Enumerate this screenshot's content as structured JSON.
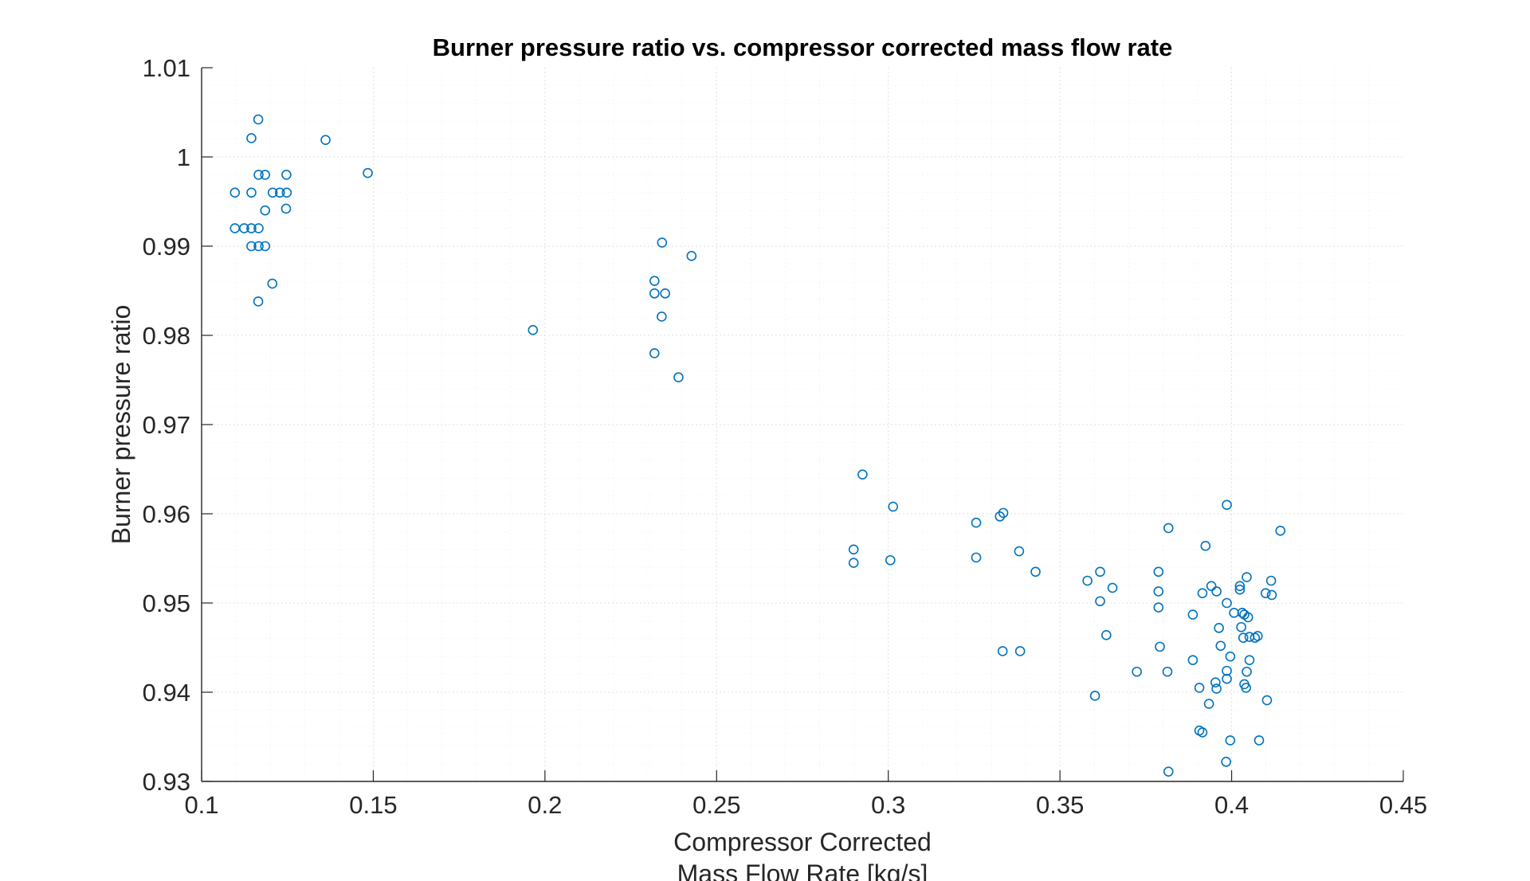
{
  "chart_data": {
    "type": "scatter",
    "title": "Burner pressure ratio vs. compressor corrected mass flow rate",
    "xlabel": [
      "Compressor Corrected",
      "Mass Flow Rate [kg/s]"
    ],
    "ylabel": "Burner pressure ratio",
    "xlim": [
      0.1,
      0.45
    ],
    "ylim": [
      0.93,
      1.01
    ],
    "xticks": [
      "0.1",
      "0.15",
      "0.2",
      "0.25",
      "0.3",
      "0.35",
      "0.4",
      "0.45"
    ],
    "yticks": [
      "0.93",
      "0.94",
      "0.95",
      "0.96",
      "0.97",
      "0.98",
      "0.99",
      "1",
      "1.01"
    ],
    "grid": true,
    "minor_grid": true,
    "marker": "circle-open",
    "color": "#0072BD",
    "series": [
      {
        "points": [
          [
            0.1165,
            1.0042
          ],
          [
            0.1145,
            1.0021
          ],
          [
            0.1361,
            1.0019
          ],
          [
            0.1484,
            0.9982
          ],
          [
            0.1166,
            0.998
          ],
          [
            0.1185,
            0.998
          ],
          [
            0.1247,
            0.998
          ],
          [
            0.1097,
            0.996
          ],
          [
            0.1145,
            0.996
          ],
          [
            0.1207,
            0.996
          ],
          [
            0.1228,
            0.996
          ],
          [
            0.1248,
            0.996
          ],
          [
            0.1185,
            0.994
          ],
          [
            0.1246,
            0.9942
          ],
          [
            0.1097,
            0.992
          ],
          [
            0.1124,
            0.992
          ],
          [
            0.1145,
            0.992
          ],
          [
            0.1166,
            0.992
          ],
          [
            0.1145,
            0.99
          ],
          [
            0.1166,
            0.99
          ],
          [
            0.1185,
            0.99
          ],
          [
            0.1206,
            0.9858
          ],
          [
            0.1165,
            0.9838
          ],
          [
            0.2341,
            0.9904
          ],
          [
            0.2427,
            0.9889
          ],
          [
            0.2319,
            0.9861
          ],
          [
            0.2319,
            0.9847
          ],
          [
            0.235,
            0.9847
          ],
          [
            0.234,
            0.9821
          ],
          [
            0.1965,
            0.9806
          ],
          [
            0.2319,
            0.978
          ],
          [
            0.2389,
            0.9753
          ],
          [
            0.2925,
            0.9644
          ],
          [
            0.3014,
            0.9608
          ],
          [
            0.3256,
            0.959
          ],
          [
            0.3325,
            0.9597
          ],
          [
            0.3335,
            0.9601
          ],
          [
            0.2899,
            0.956
          ],
          [
            0.2899,
            0.9545
          ],
          [
            0.3006,
            0.9548
          ],
          [
            0.3256,
            0.9551
          ],
          [
            0.3381,
            0.9558
          ],
          [
            0.3429,
            0.9535
          ],
          [
            0.3333,
            0.9446
          ],
          [
            0.3384,
            0.9446
          ],
          [
            0.358,
            0.9525
          ],
          [
            0.3617,
            0.9535
          ],
          [
            0.3653,
            0.9517
          ],
          [
            0.3617,
            0.9502
          ],
          [
            0.3635,
            0.9464
          ],
          [
            0.3602,
            0.9396
          ],
          [
            0.3724,
            0.9423
          ],
          [
            0.3787,
            0.9535
          ],
          [
            0.3787,
            0.9513
          ],
          [
            0.3787,
            0.9495
          ],
          [
            0.3791,
            0.9451
          ],
          [
            0.3816,
            0.9584
          ],
          [
            0.3813,
            0.9423
          ],
          [
            0.3816,
            0.9311
          ],
          [
            0.3887,
            0.9487
          ],
          [
            0.3887,
            0.9436
          ],
          [
            0.3906,
            0.9405
          ],
          [
            0.3906,
            0.9357
          ],
          [
            0.3915,
            0.9511
          ],
          [
            0.3915,
            0.9355
          ],
          [
            0.3924,
            0.9564
          ],
          [
            0.3941,
            0.9519
          ],
          [
            0.3934,
            0.9387
          ],
          [
            0.3956,
            0.9513
          ],
          [
            0.3953,
            0.9411
          ],
          [
            0.3956,
            0.9404
          ],
          [
            0.3963,
            0.9472
          ],
          [
            0.3968,
            0.9452
          ],
          [
            0.3986,
            0.961
          ],
          [
            0.3986,
            0.95
          ],
          [
            0.3986,
            0.9424
          ],
          [
            0.3986,
            0.9415
          ],
          [
            0.3996,
            0.944
          ],
          [
            0.3996,
            0.9346
          ],
          [
            0.3984,
            0.9322
          ],
          [
            0.4007,
            0.9489
          ],
          [
            0.4024,
            0.9519
          ],
          [
            0.4024,
            0.9515
          ],
          [
            0.4028,
            0.9473
          ],
          [
            0.4031,
            0.9489
          ],
          [
            0.4034,
            0.9461
          ],
          [
            0.4037,
            0.9487
          ],
          [
            0.4037,
            0.9409
          ],
          [
            0.4042,
            0.9405
          ],
          [
            0.4044,
            0.9529
          ],
          [
            0.4044,
            0.9423
          ],
          [
            0.4048,
            0.9484
          ],
          [
            0.4052,
            0.9462
          ],
          [
            0.4052,
            0.9436
          ],
          [
            0.4068,
            0.9461
          ],
          [
            0.4076,
            0.9463
          ],
          [
            0.408,
            0.9346
          ],
          [
            0.4099,
            0.9511
          ],
          [
            0.4103,
            0.9391
          ],
          [
            0.4115,
            0.9525
          ],
          [
            0.4117,
            0.9509
          ],
          [
            0.4142,
            0.9581
          ]
        ]
      }
    ]
  }
}
